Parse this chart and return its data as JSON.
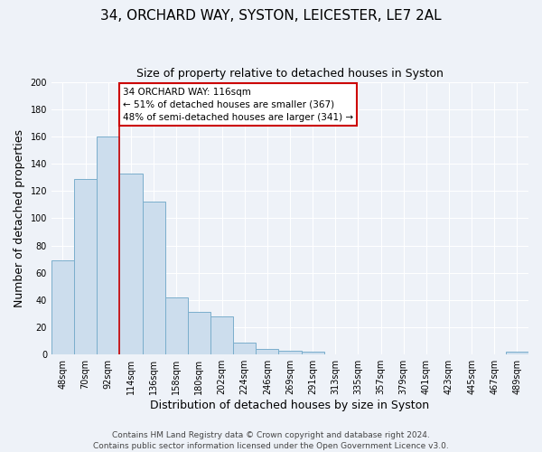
{
  "title": "34, ORCHARD WAY, SYSTON, LEICESTER, LE7 2AL",
  "subtitle": "Size of property relative to detached houses in Syston",
  "xlabel": "Distribution of detached houses by size in Syston",
  "ylabel": "Number of detached properties",
  "bar_labels": [
    "48sqm",
    "70sqm",
    "92sqm",
    "114sqm",
    "136sqm",
    "158sqm",
    "180sqm",
    "202sqm",
    "224sqm",
    "246sqm",
    "269sqm",
    "291sqm",
    "313sqm",
    "335sqm",
    "357sqm",
    "379sqm",
    "401sqm",
    "423sqm",
    "445sqm",
    "467sqm",
    "489sqm"
  ],
  "bar_heights": [
    69,
    129,
    160,
    133,
    112,
    42,
    31,
    28,
    9,
    4,
    3,
    2,
    0,
    0,
    0,
    0,
    0,
    0,
    0,
    0,
    2
  ],
  "bar_color": "#ccdded",
  "bar_edge_color": "#7aaecc",
  "vline_color": "#cc0000",
  "annotation_text": "34 ORCHARD WAY: 116sqm\n← 51% of detached houses are smaller (367)\n48% of semi-detached houses are larger (341) →",
  "annotation_box_color": "#ffffff",
  "annotation_box_edge": "#cc0000",
  "ylim": [
    0,
    200
  ],
  "yticks": [
    0,
    20,
    40,
    60,
    80,
    100,
    120,
    140,
    160,
    180,
    200
  ],
  "footer1": "Contains HM Land Registry data © Crown copyright and database right 2024.",
  "footer2": "Contains public sector information licensed under the Open Government Licence v3.0.",
  "bg_color": "#eef2f8",
  "grid_color": "#ffffff",
  "title_fontsize": 11,
  "subtitle_fontsize": 9,
  "axis_label_fontsize": 9,
  "tick_fontsize": 7,
  "footer_fontsize": 6.5,
  "annotation_fontsize": 7.5
}
